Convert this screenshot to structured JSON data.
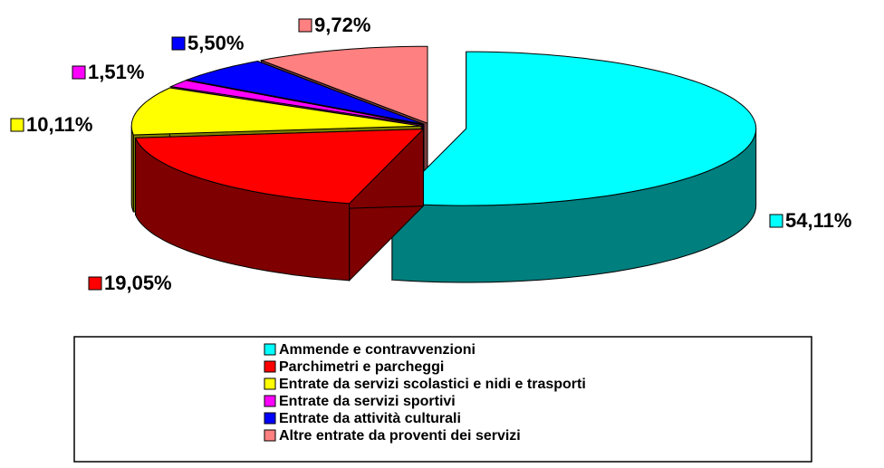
{
  "chart_data": {
    "type": "pie3d",
    "categories": [
      "Ammende e contravvenzioni",
      "Parchimetri e parcheggi",
      "Entrate da servizi scolastici e nidi e trasporti",
      "Entrate da servizi sportivi",
      "Entrate da attività culturali",
      "Altre entrate da proventi dei servizi"
    ],
    "values": [
      54.11,
      19.05,
      10.11,
      1.51,
      5.5,
      9.72
    ],
    "value_labels": [
      "54,11%",
      "19,05%",
      "10,11%",
      "1,51%",
      "5,50%",
      "9,72%"
    ],
    "colors": [
      "#00ffff",
      "#ff0000",
      "#ffff00",
      "#ff00ff",
      "#0000ff",
      "#ff8080"
    ],
    "legend": "bottom"
  }
}
